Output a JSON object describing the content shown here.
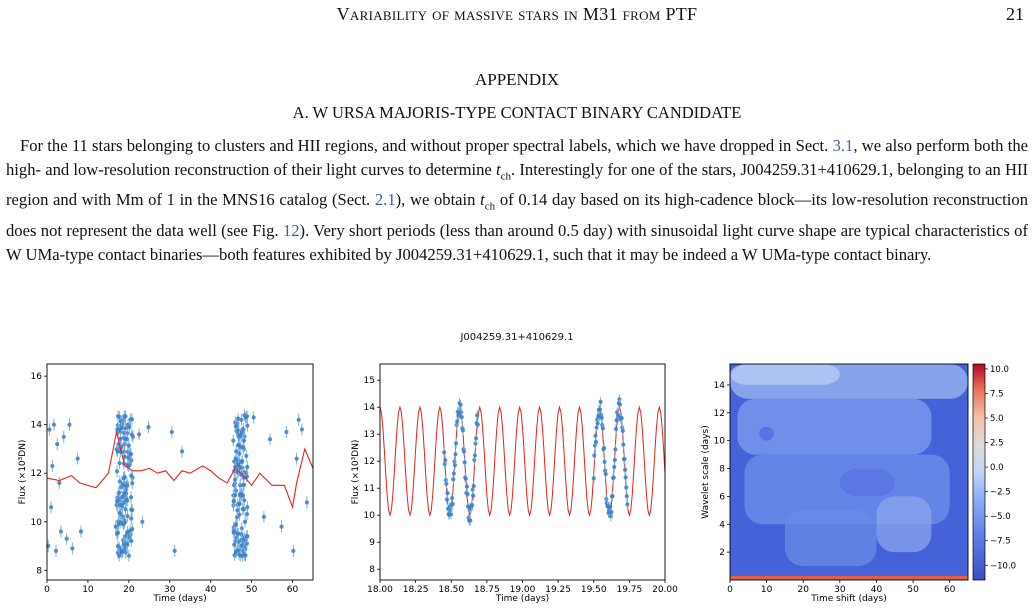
{
  "header": {
    "title": "Variability of massive stars in M31 from PTF",
    "page": "21"
  },
  "appendix_heading": "APPENDIX",
  "section_heading": "A. W URSA MAJORIS-TYPE CONTACT BINARY CANDIDATE",
  "paragraph": {
    "p1": "For the 11 stars belonging to clusters and HII regions, and without proper spectral labels, which we have dropped in Sect. ",
    "ref1": "3.1",
    "p2": ", we also perform both the high- and low-resolution reconstruction of their light curves to determine ",
    "tch1": "t",
    "tch1_sub": "ch",
    "p3": ". Interestingly for one of the stars, J004259.31+410629.1, belonging to an HII region and with Mm of 1 in the MNS16 catalog (Sect. ",
    "ref2": "2.1",
    "p4": "), we obtain ",
    "tch2": "t",
    "tch2_sub": "ch",
    "p5": " of 0.14 day based on its high-cadence block—its low-resolution reconstruction does not represent the data well (see Fig. ",
    "ref3": "12",
    "p6": "). Very short periods (less than around 0.5 day) with sinusoidal light curve shape are typical characteristics of W UMa-type contact binaries—both features exhibited by J004259.31+410629.1, such that it may be indeed a W UMa-type contact binary."
  },
  "figure_title": "J004259.31+410629.1",
  "chart_data": [
    {
      "type": "scatter",
      "xlabel": "Time (days)",
      "ylabel": "Flux (×10³DN)",
      "xlim": [
        0,
        65
      ],
      "ylim": [
        7.6,
        16.5
      ],
      "xticks": [
        0,
        10,
        20,
        30,
        40,
        50,
        60
      ],
      "yticks": [
        8,
        10,
        12,
        14,
        16
      ],
      "series": [
        {
          "kind": "points",
          "color": "#3b7fc4",
          "x": [
            0.3,
            0.6,
            1.0,
            1.3,
            1.7,
            2.2,
            2.5,
            3.0,
            3.4,
            4.1,
            4.8,
            5.5,
            6.2,
            7.5,
            8.3,
            16.8,
            17.2,
            17.6,
            18.0,
            18.2,
            18.5,
            18.8,
            19.0,
            19.2,
            19.5,
            19.8,
            20.0,
            20.3,
            20.6,
            21.0,
            22.5,
            23.3,
            24.8,
            30.5,
            31.2,
            33.0,
            46.0,
            46.3,
            46.6,
            46.9,
            47.2,
            47.5,
            47.8,
            48.1,
            48.4,
            48.7,
            50.5,
            53.0,
            54.5,
            57.3,
            58.5,
            60.2,
            61.0,
            61.5,
            62.3,
            63.5
          ],
          "y": [
            9.0,
            13.8,
            10.6,
            12.3,
            14.0,
            8.8,
            13.2,
            11.6,
            9.6,
            13.5,
            9.3,
            14.0,
            8.9,
            12.6,
            9.6,
            9.8,
            13.8,
            11.2,
            8.8,
            14.1,
            10.2,
            12.4,
            13.2,
            9.4,
            11.6,
            14.0,
            8.6,
            12.8,
            10.5,
            13.5,
            13.6,
            10.0,
            13.9,
            13.7,
            8.8,
            12.9,
            9.2,
            13.9,
            10.7,
            12.5,
            11.5,
            14.2,
            8.6,
            13.0,
            10.0,
            12.0,
            14.3,
            10.2,
            13.4,
            9.8,
            13.7,
            8.8,
            12.6,
            14.2,
            13.8,
            10.8
          ]
        },
        {
          "kind": "line",
          "color": "#e8221b",
          "x": [
            0,
            3,
            6,
            8,
            10,
            12,
            15,
            17,
            19,
            21,
            23,
            25,
            27,
            29,
            31,
            33,
            35,
            38,
            40,
            42,
            44,
            46,
            48,
            50,
            52,
            55,
            58,
            60,
            61,
            63,
            65
          ],
          "y": [
            11.8,
            11.7,
            11.9,
            11.6,
            11.5,
            11.4,
            12.0,
            13.7,
            12.3,
            12.1,
            12.1,
            12.2,
            12.0,
            12.1,
            11.7,
            12.1,
            12.0,
            12.3,
            12.1,
            11.8,
            11.6,
            12.2,
            11.9,
            11.5,
            12.0,
            11.5,
            11.5,
            10.6,
            11.6,
            13.0,
            12.2
          ]
        }
      ]
    },
    {
      "type": "scatter",
      "xlabel": "Time (days)",
      "ylabel": "Flux (×10³DN)",
      "xlim": [
        18.0,
        20.0
      ],
      "ylim": [
        7.6,
        15.6
      ],
      "xticks": [
        18.0,
        18.25,
        18.5,
        18.75,
        19.0,
        19.25,
        19.5,
        19.75,
        20.0
      ],
      "xticklabels": [
        "18.00",
        "18.25",
        "18.50",
        "18.75",
        "19.00",
        "19.25",
        "19.50",
        "19.75",
        "20.00"
      ],
      "yticks": [
        8,
        9,
        10,
        11,
        12,
        13,
        14,
        15
      ],
      "period": 0.14,
      "model": {
        "mean": 12.0,
        "amplitude": 2.0
      },
      "observed_windows": [
        [
          18.45,
          18.69
        ],
        [
          19.5,
          19.74
        ]
      ],
      "series": [
        {
          "kind": "line",
          "name": "",
          "color": "#e8221b"
        },
        {
          "kind": "points",
          "name": "",
          "color": "#3b7fc4"
        }
      ]
    },
    {
      "type": "heatmap",
      "xlabel": "Time shift (days)",
      "ylabel": "Wavelet scale (days)",
      "xlim": [
        0,
        65
      ],
      "ylim": [
        0,
        15.5
      ],
      "xticks": [
        0,
        10,
        20,
        30,
        40,
        50,
        60
      ],
      "yticks": [
        2,
        4,
        6,
        8,
        10,
        12,
        14
      ],
      "colorbar": {
        "range": [
          -11.5,
          10.5
        ],
        "ticks": [
          "10.0",
          "7.5",
          "5.0",
          "2.5",
          "0.0",
          "−2.5",
          "−5.0",
          "−7.5",
          "−10.0"
        ],
        "tick_values": [
          10,
          7.5,
          5,
          2.5,
          0,
          -2.5,
          -5,
          -7.5,
          -10
        ],
        "colormap": "coolwarm"
      }
    }
  ]
}
